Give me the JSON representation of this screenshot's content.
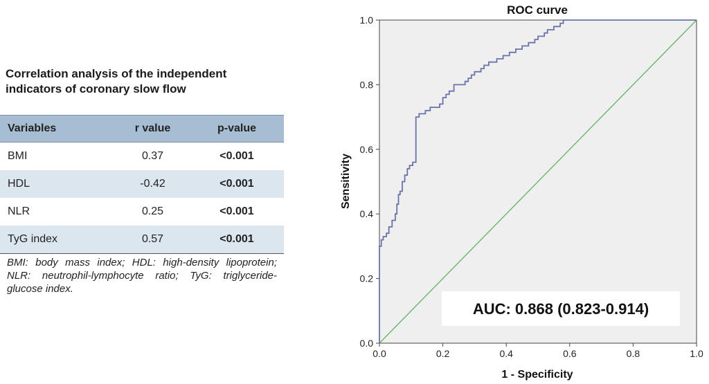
{
  "table": {
    "title_line1": "Correlation analysis of the independent",
    "title_line2": "indicators of coronary slow flow",
    "headers": [
      "Variables",
      "r value",
      "p-value"
    ],
    "rows": [
      {
        "variable": "BMI",
        "r": "0.37",
        "p": "<0.001"
      },
      {
        "variable": "HDL",
        "r": "-0.42",
        "p": "<0.001"
      },
      {
        "variable": "NLR",
        "r": "0.25",
        "p": "<0.001"
      },
      {
        "variable": "TyG index",
        "r": "0.57",
        "p": "<0.001"
      }
    ],
    "footnote": "BMI: body mass index; HDL: high-density lipoprotein; NLR: neutrophil-lymphocyte ratio; TyG: triglyceride-glucose index."
  },
  "chart_data": {
    "type": "line",
    "title": "ROC curve",
    "xlabel": "1 - Specificity",
    "ylabel": "Sensitivity",
    "xlim": [
      0,
      1
    ],
    "ylim": [
      0,
      1
    ],
    "x_ticks": [
      "0.0",
      "0.2",
      "0.4",
      "0.6",
      "0.8",
      "1.0"
    ],
    "y_ticks": [
      "0.0",
      "0.2",
      "0.4",
      "0.6",
      "0.8",
      "1.0"
    ],
    "annotation": "AUC: 0.868 (0.823-0.914)",
    "colors": {
      "roc": "#6a73a8",
      "reference": "#6ab56a",
      "plot_bg": "#efefef",
      "annotation_bg": "#ffffff"
    },
    "series": [
      {
        "points": [
          [
            0.0,
            0.0
          ],
          [
            0.0,
            0.3
          ],
          [
            0.006,
            0.3
          ],
          [
            0.006,
            0.32
          ],
          [
            0.012,
            0.32
          ],
          [
            0.012,
            0.33
          ],
          [
            0.022,
            0.33
          ],
          [
            0.022,
            0.34
          ],
          [
            0.03,
            0.34
          ],
          [
            0.03,
            0.36
          ],
          [
            0.04,
            0.36
          ],
          [
            0.04,
            0.38
          ],
          [
            0.05,
            0.38
          ],
          [
            0.05,
            0.4
          ],
          [
            0.055,
            0.4
          ],
          [
            0.055,
            0.43
          ],
          [
            0.06,
            0.43
          ],
          [
            0.06,
            0.46
          ],
          [
            0.065,
            0.46
          ],
          [
            0.065,
            0.47
          ],
          [
            0.072,
            0.47
          ],
          [
            0.072,
            0.5
          ],
          [
            0.08,
            0.5
          ],
          [
            0.08,
            0.52
          ],
          [
            0.088,
            0.52
          ],
          [
            0.088,
            0.54
          ],
          [
            0.095,
            0.54
          ],
          [
            0.095,
            0.55
          ],
          [
            0.105,
            0.55
          ],
          [
            0.105,
            0.56
          ],
          [
            0.115,
            0.56
          ],
          [
            0.115,
            0.7
          ],
          [
            0.125,
            0.7
          ],
          [
            0.125,
            0.71
          ],
          [
            0.145,
            0.71
          ],
          [
            0.145,
            0.72
          ],
          [
            0.16,
            0.72
          ],
          [
            0.16,
            0.73
          ],
          [
            0.19,
            0.73
          ],
          [
            0.19,
            0.74
          ],
          [
            0.2,
            0.74
          ],
          [
            0.2,
            0.76
          ],
          [
            0.21,
            0.76
          ],
          [
            0.21,
            0.77
          ],
          [
            0.22,
            0.77
          ],
          [
            0.22,
            0.78
          ],
          [
            0.235,
            0.78
          ],
          [
            0.235,
            0.8
          ],
          [
            0.27,
            0.8
          ],
          [
            0.27,
            0.81
          ],
          [
            0.28,
            0.81
          ],
          [
            0.28,
            0.82
          ],
          [
            0.29,
            0.82
          ],
          [
            0.29,
            0.83
          ],
          [
            0.3,
            0.83
          ],
          [
            0.3,
            0.84
          ],
          [
            0.32,
            0.84
          ],
          [
            0.32,
            0.85
          ],
          [
            0.33,
            0.85
          ],
          [
            0.33,
            0.86
          ],
          [
            0.345,
            0.86
          ],
          [
            0.345,
            0.87
          ],
          [
            0.37,
            0.87
          ],
          [
            0.37,
            0.88
          ],
          [
            0.39,
            0.88
          ],
          [
            0.39,
            0.89
          ],
          [
            0.41,
            0.89
          ],
          [
            0.41,
            0.9
          ],
          [
            0.43,
            0.9
          ],
          [
            0.43,
            0.91
          ],
          [
            0.45,
            0.91
          ],
          [
            0.45,
            0.92
          ],
          [
            0.47,
            0.92
          ],
          [
            0.47,
            0.93
          ],
          [
            0.49,
            0.93
          ],
          [
            0.49,
            0.94
          ],
          [
            0.5,
            0.94
          ],
          [
            0.5,
            0.95
          ],
          [
            0.52,
            0.95
          ],
          [
            0.52,
            0.96
          ],
          [
            0.53,
            0.96
          ],
          [
            0.53,
            0.97
          ],
          [
            0.55,
            0.97
          ],
          [
            0.55,
            0.98
          ],
          [
            0.57,
            0.98
          ],
          [
            0.57,
            0.99
          ],
          [
            0.58,
            0.99
          ],
          [
            0.58,
            1.0
          ],
          [
            1.0,
            1.0
          ]
        ]
      },
      {
        "points": [
          [
            0,
            0
          ],
          [
            1,
            1
          ]
        ]
      }
    ]
  }
}
